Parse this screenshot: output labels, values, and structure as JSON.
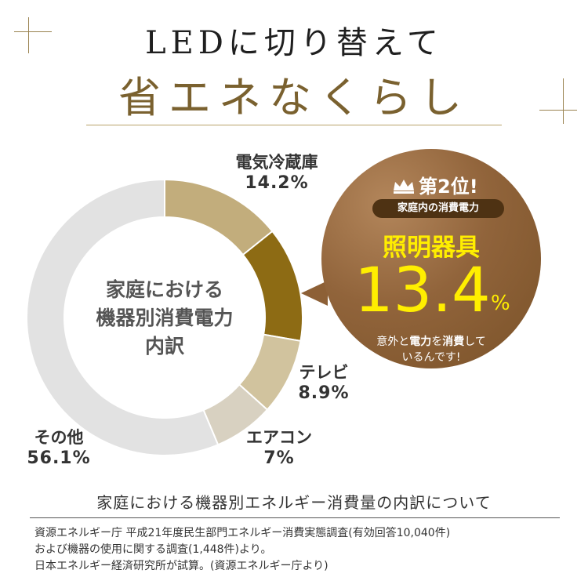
{
  "header": {
    "line1": "LEDに切り替えて",
    "line2": "省エネなくらし"
  },
  "chart_data": {
    "type": "pie",
    "title": "家庭における機器別消費電力内訳",
    "slices": [
      {
        "label": "電気冷蔵庫",
        "value": 14.2,
        "value_text": "14.2%",
        "color": "#c2ad7c"
      },
      {
        "label": "照明器具",
        "value": 13.4,
        "value_text": "13.4%",
        "color": "#8d6b14"
      },
      {
        "label": "テレビ",
        "value": 8.9,
        "value_text": "8.9%",
        "color": "#d1c39e"
      },
      {
        "label": "エアコン",
        "value": 7,
        "value_text": "7%",
        "color": "#d8d1c1"
      },
      {
        "label": "その他",
        "value": 56.1,
        "value_text": "56.1%",
        "color": "#e2e2e2"
      }
    ]
  },
  "center": {
    "line1": "家庭における",
    "line2": "機器別消費電力",
    "line3": "内訳"
  },
  "callout": {
    "rank": "第2位!",
    "sub": "家庭内の消費電力",
    "name": "照明器具",
    "value": "13.4",
    "unit": "%",
    "note_pre": "意外と",
    "note_bold1": "電力",
    "note_mid": "を",
    "note_bold2": "消費",
    "note_post": "して",
    "note_line2": "いるんです!"
  },
  "caption": "家庭における機器別エネルギー消費量の内訳について",
  "source": {
    "line1": "資源エネルギー庁 平成21年度民生部門エネルギー消費実態調査(有効回答10,040件)",
    "line2": "および機器の使用に関する調査(1,448件)より。",
    "line3": "日本エネルギー経済研究所が試算。(資源エネルギー庁より)"
  }
}
